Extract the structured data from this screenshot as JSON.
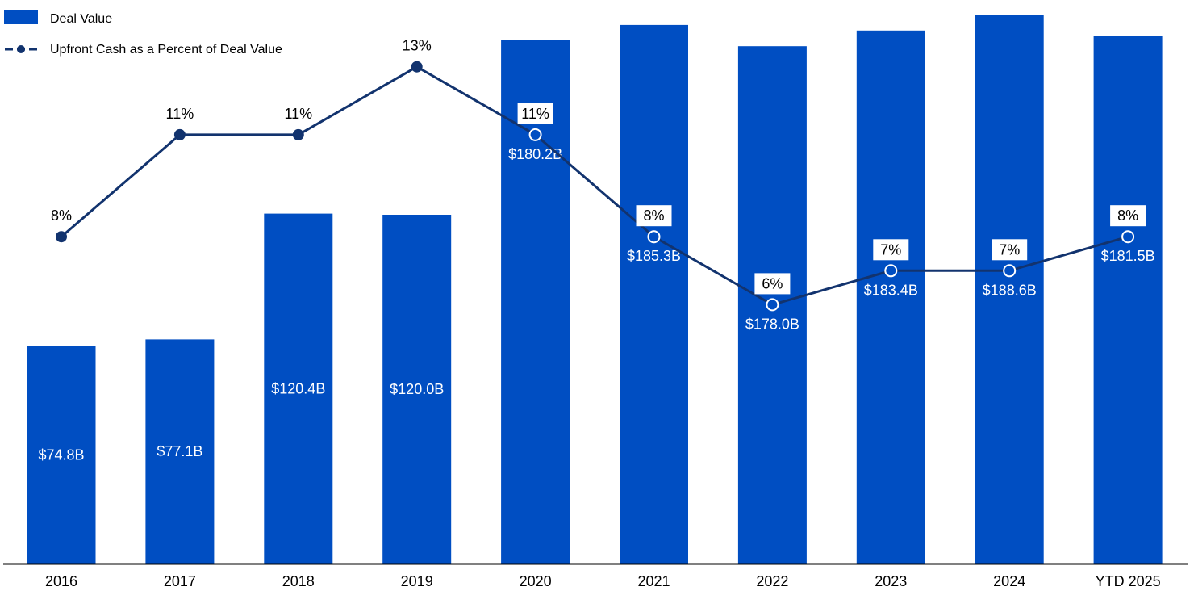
{
  "chart_data": {
    "type": "bar",
    "categories": [
      "2016",
      "2017",
      "2018",
      "2019",
      "2020",
      "2021",
      "2022",
      "2023",
      "2024",
      "YTD 2025"
    ],
    "series": [
      {
        "name": "Deal Value",
        "type": "bar",
        "values": [
          74.8,
          77.1,
          120.4,
          120.0,
          180.2,
          185.3,
          178.0,
          183.4,
          188.6,
          181.5
        ],
        "labels": [
          "$74.8B",
          "$77.1B",
          "$120.4B",
          "$120.0B",
          "$180.2B",
          "$185.3B",
          "$178.0B",
          "$183.4B",
          "$188.6B",
          "$181.5B"
        ],
        "color": "#004ec2"
      },
      {
        "name": "Upfront Cash as a Percent of Deal Value",
        "type": "line",
        "values": [
          8,
          11,
          11,
          13,
          11,
          8,
          6,
          7,
          7,
          8
        ],
        "labels": [
          "8%",
          "11%",
          "11%",
          "13%",
          "11%",
          "8%",
          "6%",
          "7%",
          "7%",
          "8%"
        ],
        "color": "#12336e"
      }
    ],
    "legend": "top-left",
    "grid": false
  }
}
